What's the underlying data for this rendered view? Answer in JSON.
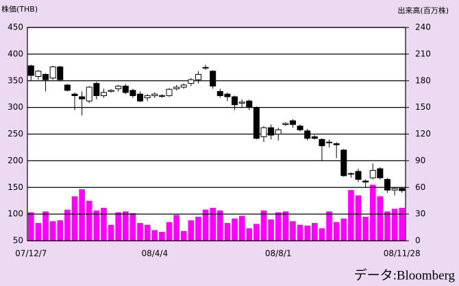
{
  "chart_data": {
    "type": "candlestick",
    "y_label": "株価(THB)",
    "y2_label": "出来高(百万株)",
    "source": "データ:Bloomberg",
    "categories": [
      "07/12/7",
      null,
      null,
      null,
      null,
      null,
      null,
      null,
      null,
      null,
      null,
      null,
      null,
      null,
      null,
      null,
      null,
      "08/4/4",
      null,
      null,
      null,
      null,
      null,
      null,
      null,
      null,
      null,
      null,
      null,
      null,
      null,
      null,
      null,
      null,
      "08/8/1",
      null,
      null,
      null,
      null,
      null,
      null,
      null,
      null,
      null,
      null,
      null,
      null,
      null,
      null,
      null,
      null,
      "08/11/28"
    ],
    "open": [
      378,
      358,
      362,
      355,
      376,
      342,
      325,
      320,
      312,
      345,
      322,
      330,
      335,
      340,
      332,
      325,
      318,
      322,
      322,
      322,
      335,
      338,
      345,
      352,
      375,
      368,
      330,
      325,
      320,
      308,
      312,
      300,
      245,
      262,
      250,
      268,
      275,
      265,
      256,
      245,
      240,
      235,
      232,
      220,
      175,
      180,
      162,
      168,
      185,
      165,
      145,
      148
    ],
    "high": [
      380,
      370,
      364,
      378,
      378,
      344,
      328,
      330,
      340,
      348,
      335,
      334,
      342,
      344,
      335,
      330,
      325,
      328,
      325,
      336,
      342,
      345,
      355,
      368,
      380,
      370,
      335,
      328,
      322,
      315,
      315,
      302,
      265,
      268,
      262,
      272,
      278,
      268,
      260,
      248,
      242,
      240,
      235,
      222,
      178,
      185,
      165,
      195,
      188,
      168,
      150,
      150
    ],
    "low": [
      350,
      352,
      330,
      352,
      350,
      330,
      295,
      285,
      308,
      315,
      318,
      328,
      330,
      325,
      318,
      310,
      312,
      318,
      318,
      320,
      332,
      335,
      340,
      345,
      370,
      335,
      318,
      312,
      295,
      300,
      295,
      240,
      235,
      240,
      238,
      265,
      262,
      255,
      238,
      240,
      200,
      225,
      205,
      170,
      168,
      160,
      150,
      165,
      165,
      140,
      135,
      140
    ],
    "close": [
      360,
      368,
      352,
      376,
      352,
      332,
      322,
      316,
      338,
      322,
      328,
      332,
      340,
      328,
      322,
      312,
      322,
      325,
      322,
      334,
      338,
      342,
      352,
      362,
      375,
      340,
      322,
      320,
      305,
      310,
      300,
      242,
      262,
      248,
      258,
      270,
      268,
      258,
      242,
      242,
      228,
      235,
      230,
      172,
      176,
      165,
      160,
      182,
      168,
      145,
      148,
      144
    ],
    "volume": [
      32,
      20,
      33,
      22,
      23,
      35,
      50,
      58,
      45,
      34,
      37,
      18,
      32,
      33,
      31,
      20,
      18,
      12,
      10,
      21,
      29,
      11,
      23,
      27,
      35,
      37,
      34,
      20,
      25,
      28,
      14,
      19,
      34,
      24,
      32,
      33,
      22,
      18,
      17,
      20,
      14,
      33,
      21,
      25,
      57,
      51,
      27,
      63,
      50,
      33,
      36,
      37
    ],
    "volume_color": "#ff00ff",
    "up_color": "#ffffff",
    "down_color": "#000000",
    "ylim": [
      50,
      450
    ],
    "yticks": [
      50,
      100,
      150,
      200,
      250,
      300,
      350,
      400,
      450
    ],
    "y2lim": [
      0,
      240
    ],
    "y2ticks": [
      0,
      30,
      60,
      90,
      120,
      150,
      180,
      210,
      240
    ],
    "grid": true
  }
}
